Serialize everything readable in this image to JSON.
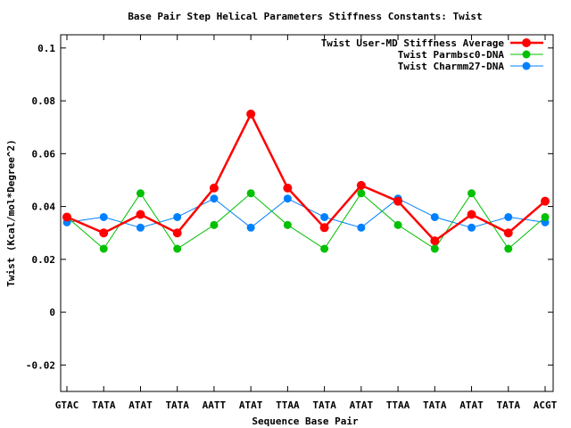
{
  "chart_data": {
    "type": "line",
    "title": "Base Pair Step Helical Parameters Stiffness Constants: Twist",
    "xlabel": "Sequence Base Pair",
    "ylabel": "Twist (Kcal/mol*Degree^2)",
    "categories": [
      "GTAC",
      "TATA",
      "ATAT",
      "TATA",
      "AATT",
      "ATAT",
      "TTAA",
      "TATA",
      "ATAT",
      "TTAA",
      "TATA",
      "ATAT",
      "TATA",
      "ACGT"
    ],
    "ylim": [
      -0.03,
      0.105
    ],
    "yticks": [
      -0.02,
      0,
      0.02,
      0.04,
      0.06,
      0.08,
      0.1
    ],
    "ytick_labels": [
      "-0.02",
      "0",
      "0.02",
      "0.04",
      "0.06",
      "0.08",
      "0.1"
    ],
    "grid": false,
    "legend_position": "top-right",
    "series": [
      {
        "name": "Twist User-MD Stiffness Average",
        "color": "#ff0000",
        "values": [
          0.036,
          0.03,
          0.037,
          0.03,
          0.047,
          0.075,
          0.047,
          0.032,
          0.048,
          0.042,
          0.027,
          0.037,
          0.03,
          0.042
        ]
      },
      {
        "name": "Twist Parmbsc0-DNA",
        "color": "#00c000",
        "values": [
          0.036,
          0.024,
          0.045,
          0.024,
          0.033,
          0.045,
          0.033,
          0.024,
          0.045,
          0.033,
          0.024,
          0.045,
          0.024,
          0.036
        ]
      },
      {
        "name": "Twist Charmm27-DNA",
        "color": "#0080ff",
        "values": [
          0.034,
          0.036,
          0.032,
          0.036,
          0.043,
          0.032,
          0.043,
          0.036,
          0.032,
          0.043,
          0.036,
          0.032,
          0.036,
          0.034
        ]
      }
    ]
  }
}
